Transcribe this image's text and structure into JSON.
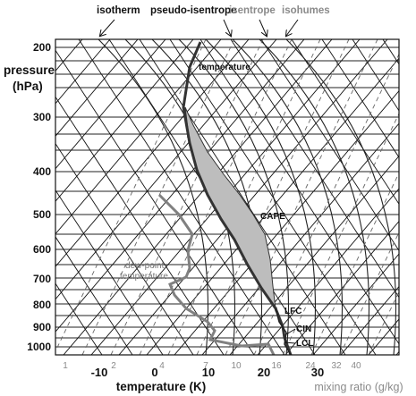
{
  "top_labels": {
    "isotherm": "isotherm",
    "pseudo_isentrope": "pseudo-isentrope",
    "isentrope": "isentrope",
    "isohumes": "isohumes"
  },
  "axes": {
    "y_title_line1": "pressure",
    "y_title_line2": "(hPa)",
    "x_title": "temperature (K)",
    "mixing_ratio_title": "mixing ratio (g/kg)"
  },
  "pressure_ticks": [
    "200",
    "300",
    "400",
    "500",
    "600",
    "700",
    "800",
    "900",
    "1000"
  ],
  "temperature_ticks": [
    "-10",
    "0",
    "10",
    "20",
    "30"
  ],
  "mixing_ratio_ticks": [
    "1",
    "2",
    "4",
    "7",
    "10",
    "16",
    "24",
    "32",
    "40"
  ],
  "annotations": {
    "temperature": "temperature",
    "cape": "CAPE",
    "dewpoint_line1": "dew-point",
    "dewpoint_line2": "temperature",
    "lfc": "LFC",
    "cin": "CIN",
    "lcl": "LCL"
  },
  "colors": {
    "grid": "#111111",
    "isohume": "#555555",
    "temperature_curve": "#333333",
    "dewpoint_curve": "#808080",
    "cape_fill": "#bdbdbd",
    "muted_text": "#8a8a8a"
  }
}
